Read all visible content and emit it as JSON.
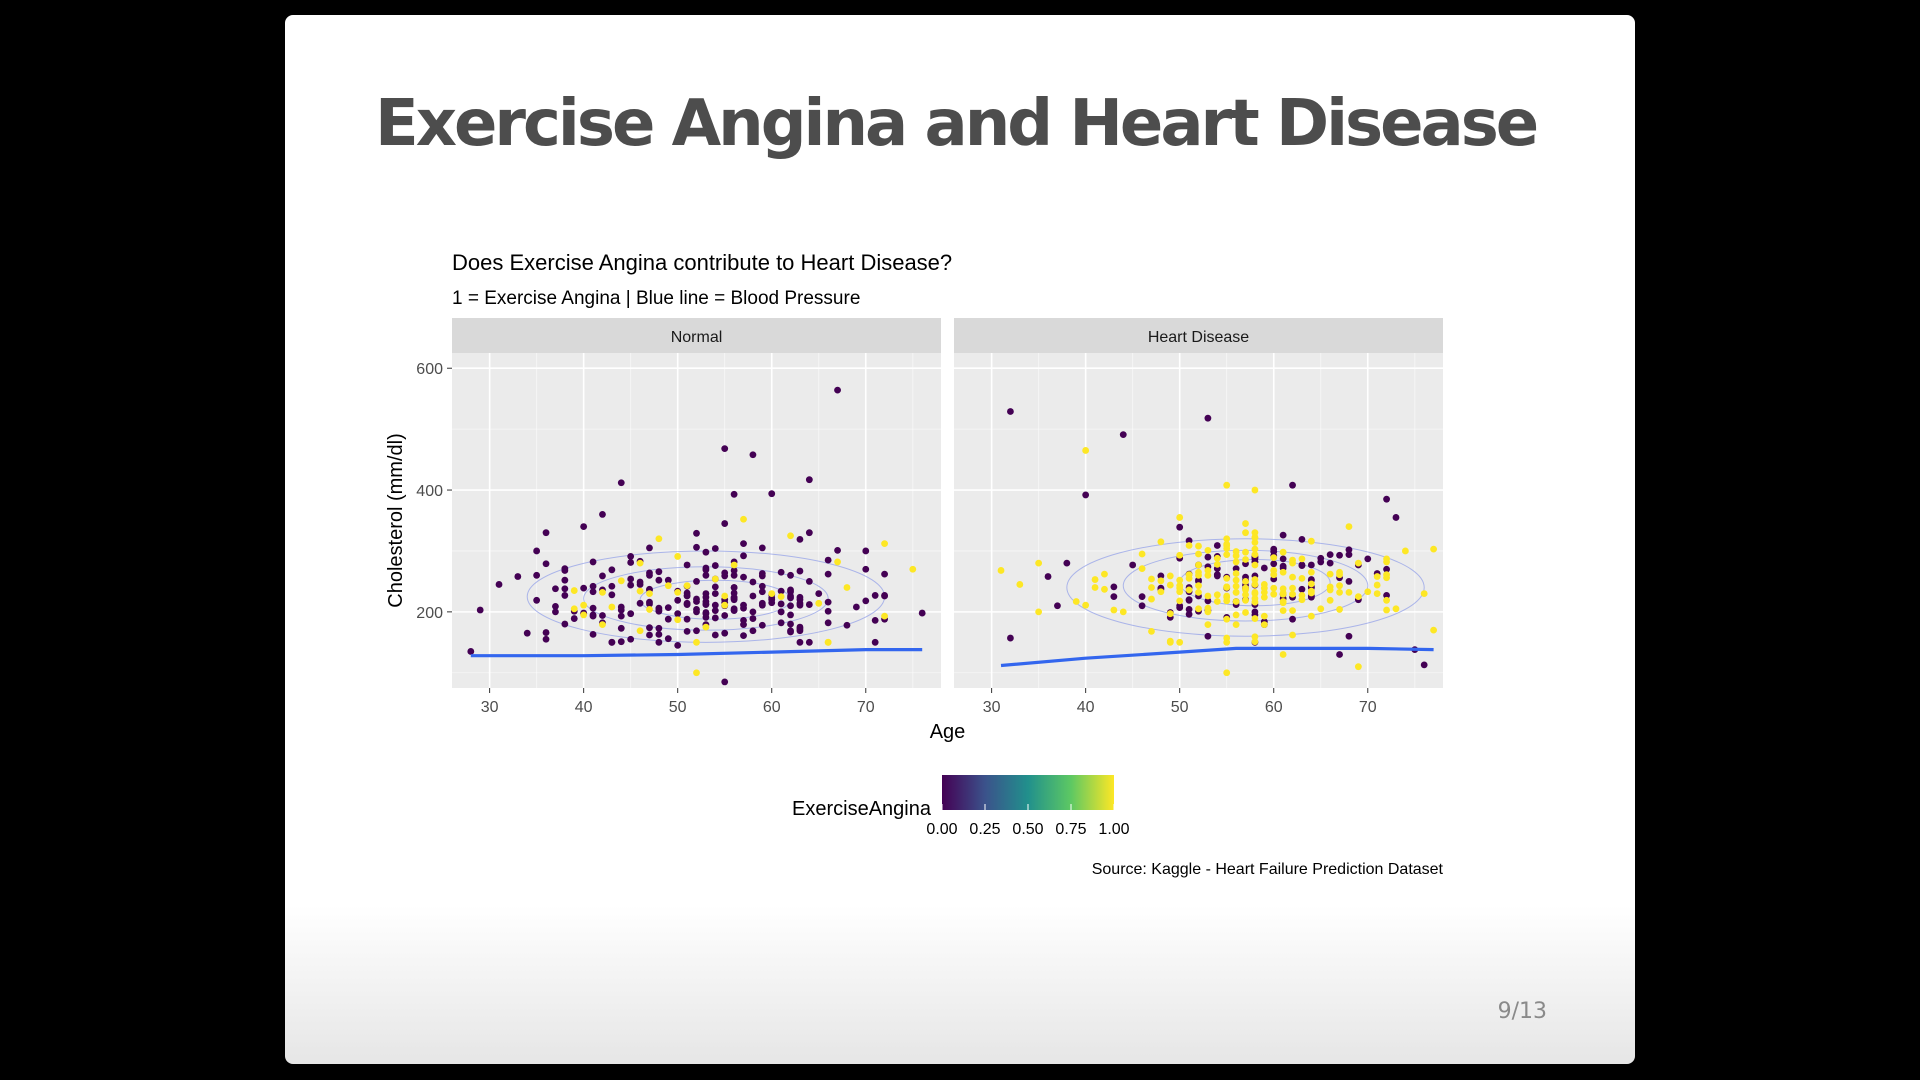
{
  "slide": {
    "title": "Exercise Angina and Heart Disease",
    "page_number": "9/13"
  },
  "colors": {
    "background": "#000000",
    "slide": "#ffffff",
    "title_text": "#4d4d4d",
    "panel_bg": "#ebebeb",
    "strip_bg": "#d9d9d9",
    "gridline": "#ffffff",
    "bp_line": "#3366ee",
    "contour": "#9aa6e8",
    "viridis": [
      "#440154",
      "#3b528b",
      "#21908c",
      "#5dc863",
      "#fde725"
    ]
  },
  "chart_data": {
    "type": "scatter",
    "title": "Does Exercise Angina contribute to Heart Disease?",
    "subtitle": "1 = Exercise Angina | Blue line = Blood Pressure",
    "xlabel": "Age",
    "ylabel": "Cholesterol (mm/dl)",
    "caption": "Source: Kaggle - Heart Failure Prediction Dataset",
    "xlim": [
      26,
      78
    ],
    "ylim": [
      75,
      625
    ],
    "x_ticks": [
      30,
      40,
      50,
      60,
      70
    ],
    "y_ticks": [
      200,
      400,
      600
    ],
    "grid": true,
    "legend": {
      "title": "ExerciseAngina",
      "position": "bottom",
      "type": "colorbar",
      "ticks": [
        "0.00",
        "0.25",
        "0.50",
        "0.75",
        "1.00"
      ]
    },
    "panels": [
      {
        "name": "Normal",
        "bp_line": [
          [
            28,
            128
          ],
          [
            40,
            128
          ],
          [
            50,
            130
          ],
          [
            60,
            134
          ],
          [
            70,
            138
          ],
          [
            76,
            138
          ]
        ],
        "contours": [
          {
            "cx": 53,
            "cy": 225,
            "rx": 19,
            "ry": 75
          },
          {
            "cx": 53,
            "cy": 222,
            "rx": 13,
            "ry": 52
          },
          {
            "cx": 54,
            "cy": 220,
            "rx": 8,
            "ry": 32
          }
        ],
        "cluster": {
          "center": [
            52,
            220
          ],
          "spread": [
            9,
            42
          ],
          "count": 230,
          "angina_share": 0.13
        },
        "points": [
          [
            67,
            564,
            0
          ],
          [
            55,
            468,
            0
          ],
          [
            58,
            458,
            0
          ],
          [
            44,
            412,
            0
          ],
          [
            64,
            417,
            0
          ],
          [
            56,
            393,
            0
          ],
          [
            60,
            394,
            0
          ],
          [
            42,
            360,
            0
          ],
          [
            76,
            198,
            0
          ],
          [
            29,
            203,
            0
          ],
          [
            28,
            135,
            0
          ],
          [
            71,
            150,
            0
          ],
          [
            52,
            100,
            1
          ],
          [
            55,
            85,
            0
          ],
          [
            72,
            312,
            1
          ],
          [
            75,
            270,
            1
          ],
          [
            57,
            352,
            1
          ],
          [
            62,
            325,
            1
          ],
          [
            48,
            320,
            1
          ],
          [
            66,
            285,
            0
          ],
          [
            31,
            245,
            0
          ],
          [
            33,
            258,
            0
          ],
          [
            35,
            300,
            0
          ],
          [
            36,
            330,
            0
          ],
          [
            38,
            180,
            0
          ],
          [
            34,
            165,
            0
          ],
          [
            70,
            300,
            0
          ],
          [
            68,
            240,
            1
          ],
          [
            67,
            282,
            1
          ],
          [
            64,
            330,
            0
          ],
          [
            45,
            155,
            0
          ],
          [
            50,
            145,
            0
          ],
          [
            63,
            175,
            0
          ],
          [
            69,
            208,
            0
          ],
          [
            40,
            340,
            0
          ],
          [
            47,
            305,
            0
          ]
        ]
      },
      {
        "name": "Heart Disease",
        "bp_line": [
          [
            31,
            112
          ],
          [
            40,
            124
          ],
          [
            50,
            134
          ],
          [
            56,
            140
          ],
          [
            70,
            140
          ],
          [
            77,
            138
          ]
        ],
        "contours": [
          {
            "cx": 57,
            "cy": 240,
            "rx": 19,
            "ry": 80
          },
          {
            "cx": 57,
            "cy": 243,
            "rx": 13,
            "ry": 58
          },
          {
            "cx": 58,
            "cy": 248,
            "rx": 8,
            "ry": 38
          }
        ],
        "cluster": {
          "center": [
            57,
            248
          ],
          "spread": [
            7,
            40
          ],
          "count": 260,
          "angina_share": 0.62
        },
        "points": [
          [
            32,
            529,
            0
          ],
          [
            53,
            518,
            0
          ],
          [
            44,
            491,
            0
          ],
          [
            40,
            465,
            1
          ],
          [
            40,
            392,
            0
          ],
          [
            62,
            408,
            0
          ],
          [
            72,
            385,
            0
          ],
          [
            73,
            355,
            0
          ],
          [
            55,
            408,
            1
          ],
          [
            58,
            400,
            1
          ],
          [
            31,
            268,
            1
          ],
          [
            33,
            245,
            1
          ],
          [
            35,
            280,
            1
          ],
          [
            36,
            258,
            0
          ],
          [
            38,
            280,
            0
          ],
          [
            39,
            217,
            1
          ],
          [
            35,
            200,
            1
          ],
          [
            32,
            157,
            0
          ],
          [
            37,
            210,
            0
          ],
          [
            43,
            225,
            0
          ],
          [
            44,
            200,
            1
          ],
          [
            77,
            303,
            1
          ],
          [
            77,
            170,
            1
          ],
          [
            76,
            113,
            0
          ],
          [
            75,
            138,
            0
          ],
          [
            74,
            300,
            1
          ],
          [
            72,
            270,
            0
          ],
          [
            71,
            244,
            1
          ],
          [
            69,
            110,
            1
          ],
          [
            67,
            130,
            0
          ],
          [
            61,
            130,
            1
          ],
          [
            55,
            100,
            1
          ],
          [
            53,
            160,
            0
          ],
          [
            49,
            152,
            1
          ],
          [
            46,
            210,
            0
          ],
          [
            73,
            205,
            1
          ],
          [
            76,
            230,
            1
          ],
          [
            68,
            160,
            0
          ],
          [
            50,
            355,
            1
          ]
        ]
      }
    ]
  }
}
